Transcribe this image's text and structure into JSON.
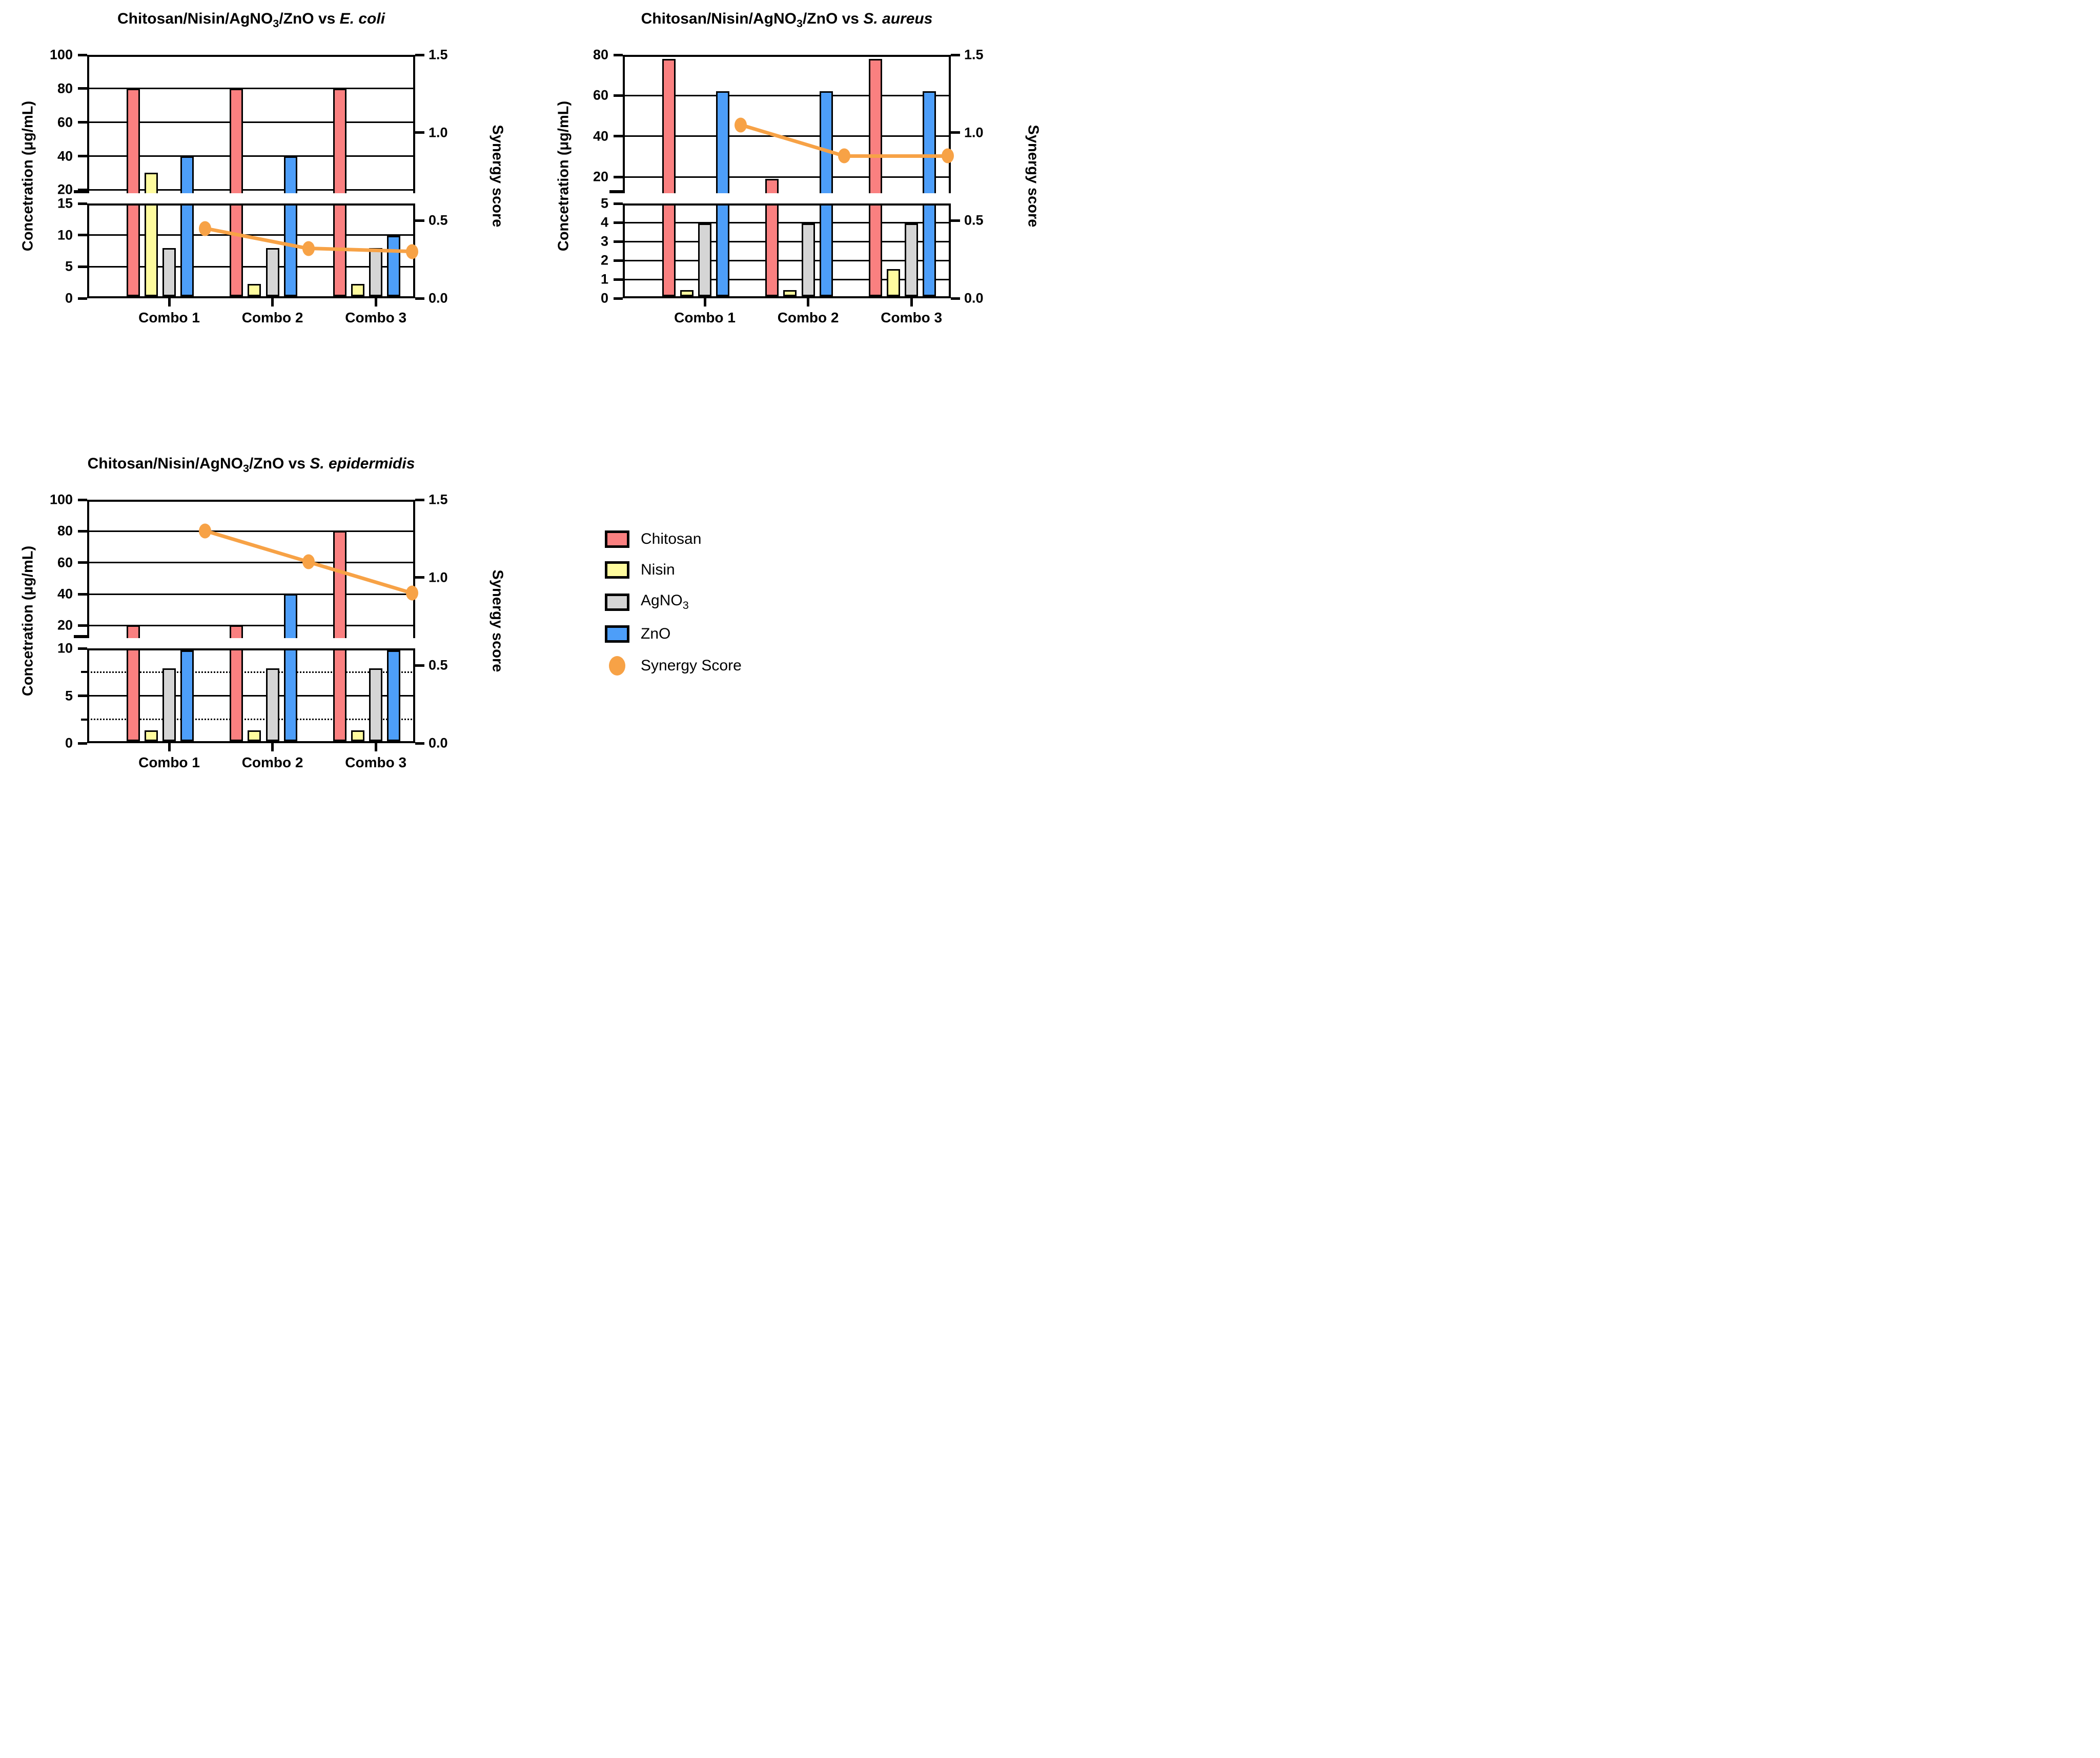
{
  "figure_background": "#FFFFFF",
  "colors": {
    "chitosan": "#FA8080",
    "nisin": "#FEFB9E",
    "agno3": "#D5D5D5",
    "zno": "#4D9EF9",
    "synergy": "#F7A246",
    "axis": "#000000"
  },
  "legend": {
    "items": [
      {
        "label": "Chitosan",
        "sub": "",
        "shape": "rect",
        "color_key": "chitosan"
      },
      {
        "label": "Nisin",
        "sub": "",
        "shape": "rect",
        "color_key": "nisin"
      },
      {
        "label": "AgNO",
        "sub": "3",
        "shape": "rect",
        "color_key": "agno3"
      },
      {
        "label": "ZnO",
        "sub": "",
        "shape": "rect",
        "color_key": "zno"
      },
      {
        "label": "Synergy Score",
        "sub": "",
        "shape": "ellipse",
        "color_key": "synergy"
      }
    ]
  },
  "chart_data": [
    {
      "type": "bar+line",
      "title": {
        "main": "Chitosan/Nisin/AgNO",
        "sub": "3",
        "after": "/ZnO vs ",
        "species": "E. coli"
      },
      "y_left_label": "Concetration (μg/mL)",
      "y_right_label": "Synergy score",
      "x_categories": [
        "Combo 1",
        "Combo 2",
        "Combo 3"
      ],
      "upper_axis": {
        "min": 18,
        "max": 100,
        "ticks": [
          20,
          40,
          60,
          80,
          100
        ]
      },
      "lower_axis": {
        "min": 0,
        "max": 15,
        "ticks": [
          0,
          5,
          10,
          15
        ],
        "dotted_gridlines": []
      },
      "right_axis": {
        "min": 0,
        "max": 1.5,
        "ticks": [
          0,
          0.5,
          1,
          1.5
        ],
        "tick_labels": [
          "0.0",
          "0.5",
          "1.0",
          "1.5"
        ]
      },
      "bar_series": [
        {
          "name": "Chitosan",
          "color_key": "chitosan",
          "values": [
            80,
            80,
            80
          ]
        },
        {
          "name": "Nisin",
          "color_key": "nisin",
          "values": [
            30,
            2,
            2
          ]
        },
        {
          "name": "AgNO3",
          "color_key": "agno3",
          "values": [
            8,
            8,
            8
          ]
        },
        {
          "name": "ZnO",
          "color_key": "zno",
          "values": [
            40,
            40,
            10
          ]
        }
      ],
      "line_series": {
        "name": "Synergy Score",
        "color_key": "synergy",
        "values": [
          0.45,
          0.32,
          0.3
        ]
      }
    },
    {
      "type": "bar+line",
      "title": {
        "main": "Chitosan/Nisin/AgNO",
        "sub": "3",
        "after": "/ZnO vs ",
        "species": "S. aureus"
      },
      "y_left_label": "Concetration (μg/mL)",
      "y_right_label": "Synergy score",
      "x_categories": [
        "Combo 1",
        "Combo 2",
        "Combo 3"
      ],
      "upper_axis": {
        "min": 12,
        "max": 80,
        "ticks": [
          20,
          40,
          60,
          80
        ]
      },
      "lower_axis": {
        "min": 0,
        "max": 5,
        "ticks": [
          0,
          1,
          2,
          3,
          4,
          5
        ],
        "dotted_gridlines": []
      },
      "right_axis": {
        "min": 0,
        "max": 1.5,
        "ticks": [
          0,
          0.5,
          1,
          1.5
        ],
        "tick_labels": [
          "0.0",
          "0.5",
          "1.0",
          "1.5"
        ]
      },
      "bar_series": [
        {
          "name": "Chitosan",
          "color_key": "chitosan",
          "values": [
            78,
            19,
            78
          ]
        },
        {
          "name": "Nisin",
          "color_key": "nisin",
          "values": [
            0.35,
            0.35,
            1.5
          ]
        },
        {
          "name": "AgNO3",
          "color_key": "agno3",
          "values": [
            4,
            4,
            4
          ]
        },
        {
          "name": "ZnO",
          "color_key": "zno",
          "values": [
            62,
            62,
            62
          ]
        }
      ],
      "line_series": {
        "name": "Synergy Score",
        "color_key": "synergy",
        "values": [
          1.05,
          0.85,
          0.85
        ]
      }
    },
    {
      "type": "bar+line",
      "title": {
        "main": "Chitosan/Nisin/AgNO",
        "sub": "3",
        "after": "/ZnO vs ",
        "species": "S. epidermidis"
      },
      "y_left_label": "Concetration (μg/mL)",
      "y_right_label": "Synergy score",
      "x_categories": [
        "Combo 1",
        "Combo 2",
        "Combo 3"
      ],
      "upper_axis": {
        "min": 12,
        "max": 100,
        "ticks": [
          20,
          40,
          60,
          80,
          100
        ]
      },
      "lower_axis": {
        "min": 0,
        "max": 10,
        "ticks": [
          0,
          5,
          10
        ],
        "dotted_gridlines": [
          2.5,
          7.5
        ]
      },
      "right_axis": {
        "min": 0,
        "max": 1.5,
        "ticks": [
          0,
          0.5,
          1,
          1.5
        ],
        "tick_labels": [
          "0.0",
          "0.5",
          "1.0",
          "1.5"
        ]
      },
      "bar_series": [
        {
          "name": "Chitosan",
          "color_key": "chitosan",
          "values": [
            20,
            20,
            80
          ]
        },
        {
          "name": "Nisin",
          "color_key": "nisin",
          "values": [
            1.2,
            1.2,
            1.2
          ]
        },
        {
          "name": "AgNO3",
          "color_key": "agno3",
          "values": [
            8,
            8,
            8
          ]
        },
        {
          "name": "ZnO",
          "color_key": "zno",
          "values": [
            10,
            40,
            10
          ]
        }
      ],
      "line_series": {
        "name": "Synergy Score",
        "color_key": "synergy",
        "values": [
          1.3,
          1.1,
          0.9
        ]
      }
    }
  ]
}
